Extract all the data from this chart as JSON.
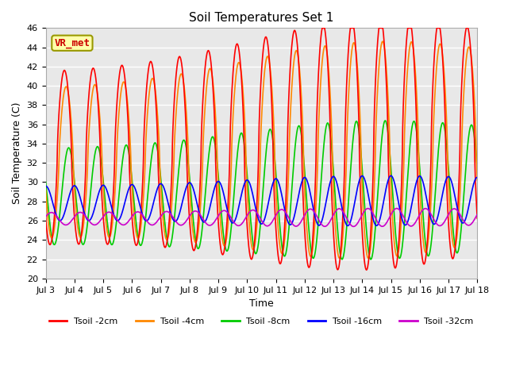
{
  "title": "Soil Temperatures Set 1",
  "xlabel": "Time",
  "ylabel": "Soil Temperature (C)",
  "ylim": [
    20,
    46
  ],
  "yticks": [
    20,
    22,
    24,
    26,
    28,
    30,
    32,
    34,
    36,
    38,
    40,
    42,
    44,
    46
  ],
  "x_tick_labels": [
    "Jul 3",
    "Jul 4",
    "Jul 5",
    "Jul 6",
    "Jul 7",
    "Jul 8",
    "Jul 9",
    "Jul 10",
    "Jul 11",
    "Jul 12",
    "Jul 13",
    "Jul 14",
    "Jul 15",
    "Jul 16",
    "Jul 17",
    "Jul 18"
  ],
  "series": [
    {
      "label": "Tsoil -2cm",
      "color": "#ff0000"
    },
    {
      "label": "Tsoil -4cm",
      "color": "#ff8800"
    },
    {
      "label": "Tsoil -8cm",
      "color": "#00cc00"
    },
    {
      "label": "Tsoil -16cm",
      "color": "#0000ff"
    },
    {
      "label": "Tsoil -32cm",
      "color": "#cc00cc"
    }
  ],
  "annotation": {
    "text": "VR_met",
    "fontsize": 9,
    "color": "#cc0000",
    "bg_color": "#ffffaa",
    "border_color": "#999900"
  },
  "bg_color": "#e8e8e8",
  "grid_color": "#ffffff",
  "linewidth": 1.2,
  "n_days": 15,
  "samples_per_day": 144
}
